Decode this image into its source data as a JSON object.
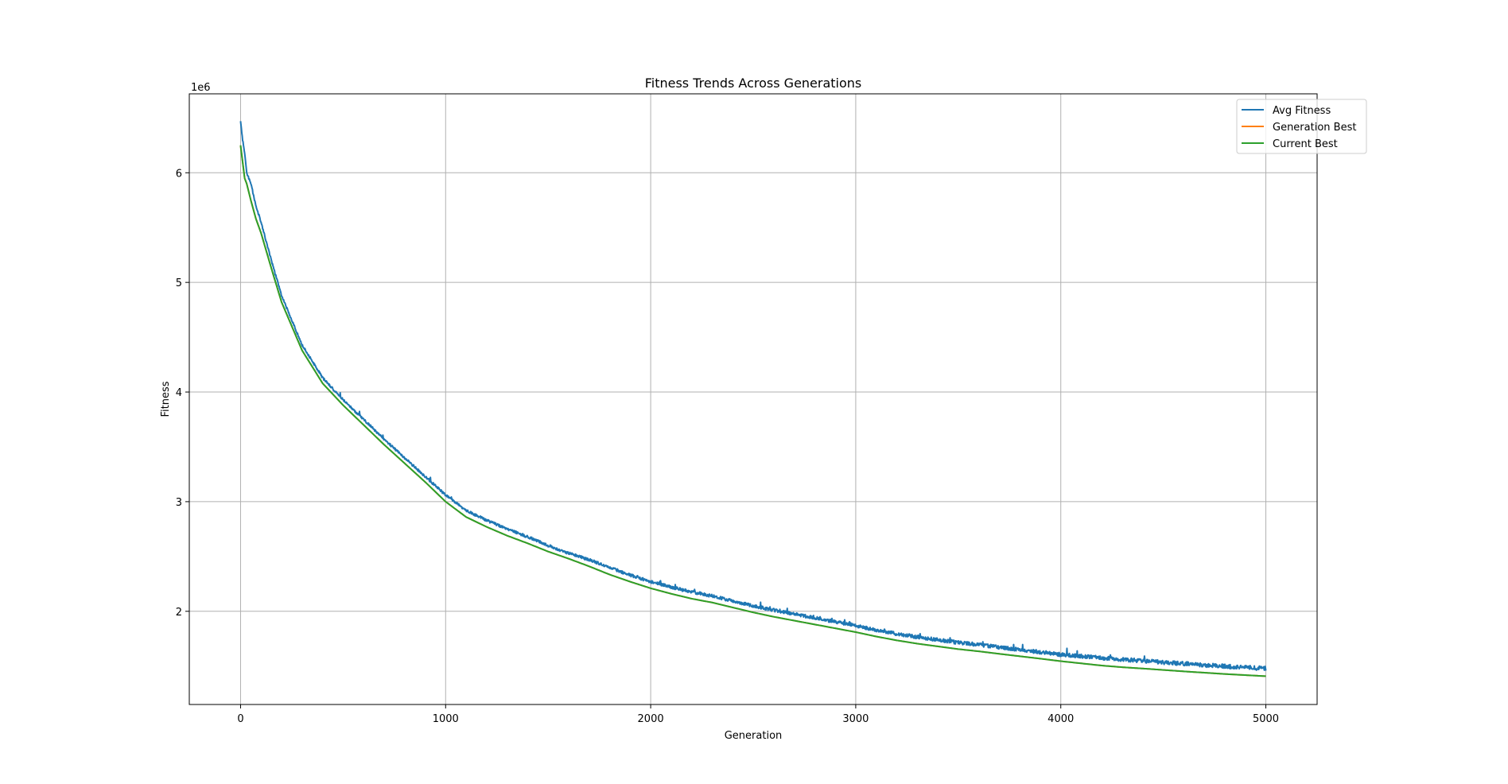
{
  "chart_data": {
    "type": "line",
    "title": "Fitness Trends Across Generations",
    "xlabel": "Generation",
    "ylabel": "Fitness",
    "y_offset_label": "1e6",
    "xlim": [
      -250,
      5250
    ],
    "ylim": [
      1150000,
      6720000
    ],
    "xticks": [
      0,
      1000,
      2000,
      3000,
      4000,
      5000
    ],
    "xtick_labels": [
      "0",
      "1000",
      "2000",
      "3000",
      "4000",
      "5000"
    ],
    "yticks": [
      2000000,
      3000000,
      4000000,
      5000000,
      6000000
    ],
    "ytick_labels": [
      "2",
      "3",
      "4",
      "5",
      "6"
    ],
    "grid": true,
    "legend_position": "top-right",
    "series": [
      {
        "name": "Avg Fitness",
        "color": "#1f77b4",
        "noisy": true,
        "x": [
          0,
          10,
          20,
          30,
          50,
          75,
          100,
          150,
          200,
          300,
          400,
          500,
          600,
          700,
          800,
          900,
          1000,
          1100,
          1200,
          1300,
          1400,
          1500,
          1600,
          1700,
          1800,
          1900,
          2000,
          2100,
          2200,
          2300,
          2400,
          2500,
          2600,
          2700,
          2800,
          2900,
          3000,
          3100,
          3200,
          3300,
          3400,
          3500,
          3600,
          3700,
          3800,
          3900,
          4000,
          4100,
          4200,
          4300,
          4400,
          4500,
          4600,
          4700,
          4800,
          4900,
          5000
        ],
        "y": [
          6470000,
          6300000,
          6180000,
          6000000,
          5900000,
          5700000,
          5550000,
          5200000,
          4880000,
          4430000,
          4130000,
          3930000,
          3750000,
          3570000,
          3400000,
          3230000,
          3060000,
          2920000,
          2830000,
          2750000,
          2680000,
          2600000,
          2530000,
          2470000,
          2400000,
          2330000,
          2270000,
          2220000,
          2175000,
          2140000,
          2095000,
          2050000,
          2010000,
          1975000,
          1940000,
          1905000,
          1870000,
          1830000,
          1795000,
          1765000,
          1740000,
          1715000,
          1695000,
          1672000,
          1650000,
          1628000,
          1605000,
          1590000,
          1575000,
          1560000,
          1548000,
          1535000,
          1522000,
          1510000,
          1498000,
          1488000,
          1478000
        ]
      },
      {
        "name": "Generation Best",
        "color": "#ff7f0e",
        "noisy": false,
        "x": [
          0,
          10,
          20,
          30,
          50,
          75,
          100,
          150,
          200,
          300,
          400,
          500,
          600,
          700,
          800,
          900,
          1000,
          1100,
          1200,
          1300,
          1400,
          1500,
          1600,
          1700,
          1800,
          1900,
          2000,
          2100,
          2200,
          2300,
          2400,
          2500,
          2600,
          2700,
          2800,
          2900,
          3000,
          3100,
          3200,
          3300,
          3400,
          3500,
          3600,
          3700,
          3800,
          3900,
          4000,
          4100,
          4200,
          4300,
          4400,
          4500,
          4600,
          4700,
          4800,
          4900,
          5000
        ],
        "y": [
          6250000,
          6100000,
          5950000,
          5900000,
          5750000,
          5580000,
          5450000,
          5130000,
          4820000,
          4380000,
          4080000,
          3880000,
          3700000,
          3520000,
          3350000,
          3180000,
          3000000,
          2860000,
          2770000,
          2690000,
          2620000,
          2545000,
          2480000,
          2410000,
          2335000,
          2270000,
          2210000,
          2160000,
          2115000,
          2080000,
          2035000,
          1990000,
          1950000,
          1915000,
          1880000,
          1845000,
          1810000,
          1770000,
          1735000,
          1705000,
          1680000,
          1655000,
          1635000,
          1612000,
          1590000,
          1568000,
          1545000,
          1525000,
          1505000,
          1490000,
          1478000,
          1465000,
          1452000,
          1440000,
          1428000,
          1418000,
          1408000
        ]
      },
      {
        "name": "Current Best",
        "color": "#2ca02c",
        "noisy": false,
        "x": [
          0,
          10,
          20,
          30,
          50,
          75,
          100,
          150,
          200,
          300,
          400,
          500,
          600,
          700,
          800,
          900,
          1000,
          1100,
          1200,
          1300,
          1400,
          1500,
          1600,
          1700,
          1800,
          1900,
          2000,
          2100,
          2200,
          2300,
          2400,
          2500,
          2600,
          2700,
          2800,
          2900,
          3000,
          3100,
          3200,
          3300,
          3400,
          3500,
          3600,
          3700,
          3800,
          3900,
          4000,
          4100,
          4200,
          4300,
          4400,
          4500,
          4600,
          4700,
          4800,
          4900,
          5000
        ],
        "y": [
          6250000,
          6100000,
          5950000,
          5900000,
          5750000,
          5580000,
          5450000,
          5130000,
          4820000,
          4380000,
          4080000,
          3880000,
          3700000,
          3520000,
          3350000,
          3180000,
          3000000,
          2860000,
          2770000,
          2690000,
          2620000,
          2545000,
          2480000,
          2410000,
          2335000,
          2270000,
          2210000,
          2160000,
          2115000,
          2080000,
          2035000,
          1990000,
          1950000,
          1915000,
          1880000,
          1845000,
          1810000,
          1770000,
          1735000,
          1705000,
          1680000,
          1655000,
          1635000,
          1612000,
          1590000,
          1568000,
          1545000,
          1525000,
          1505000,
          1490000,
          1478000,
          1465000,
          1452000,
          1440000,
          1428000,
          1418000,
          1408000
        ]
      }
    ]
  }
}
